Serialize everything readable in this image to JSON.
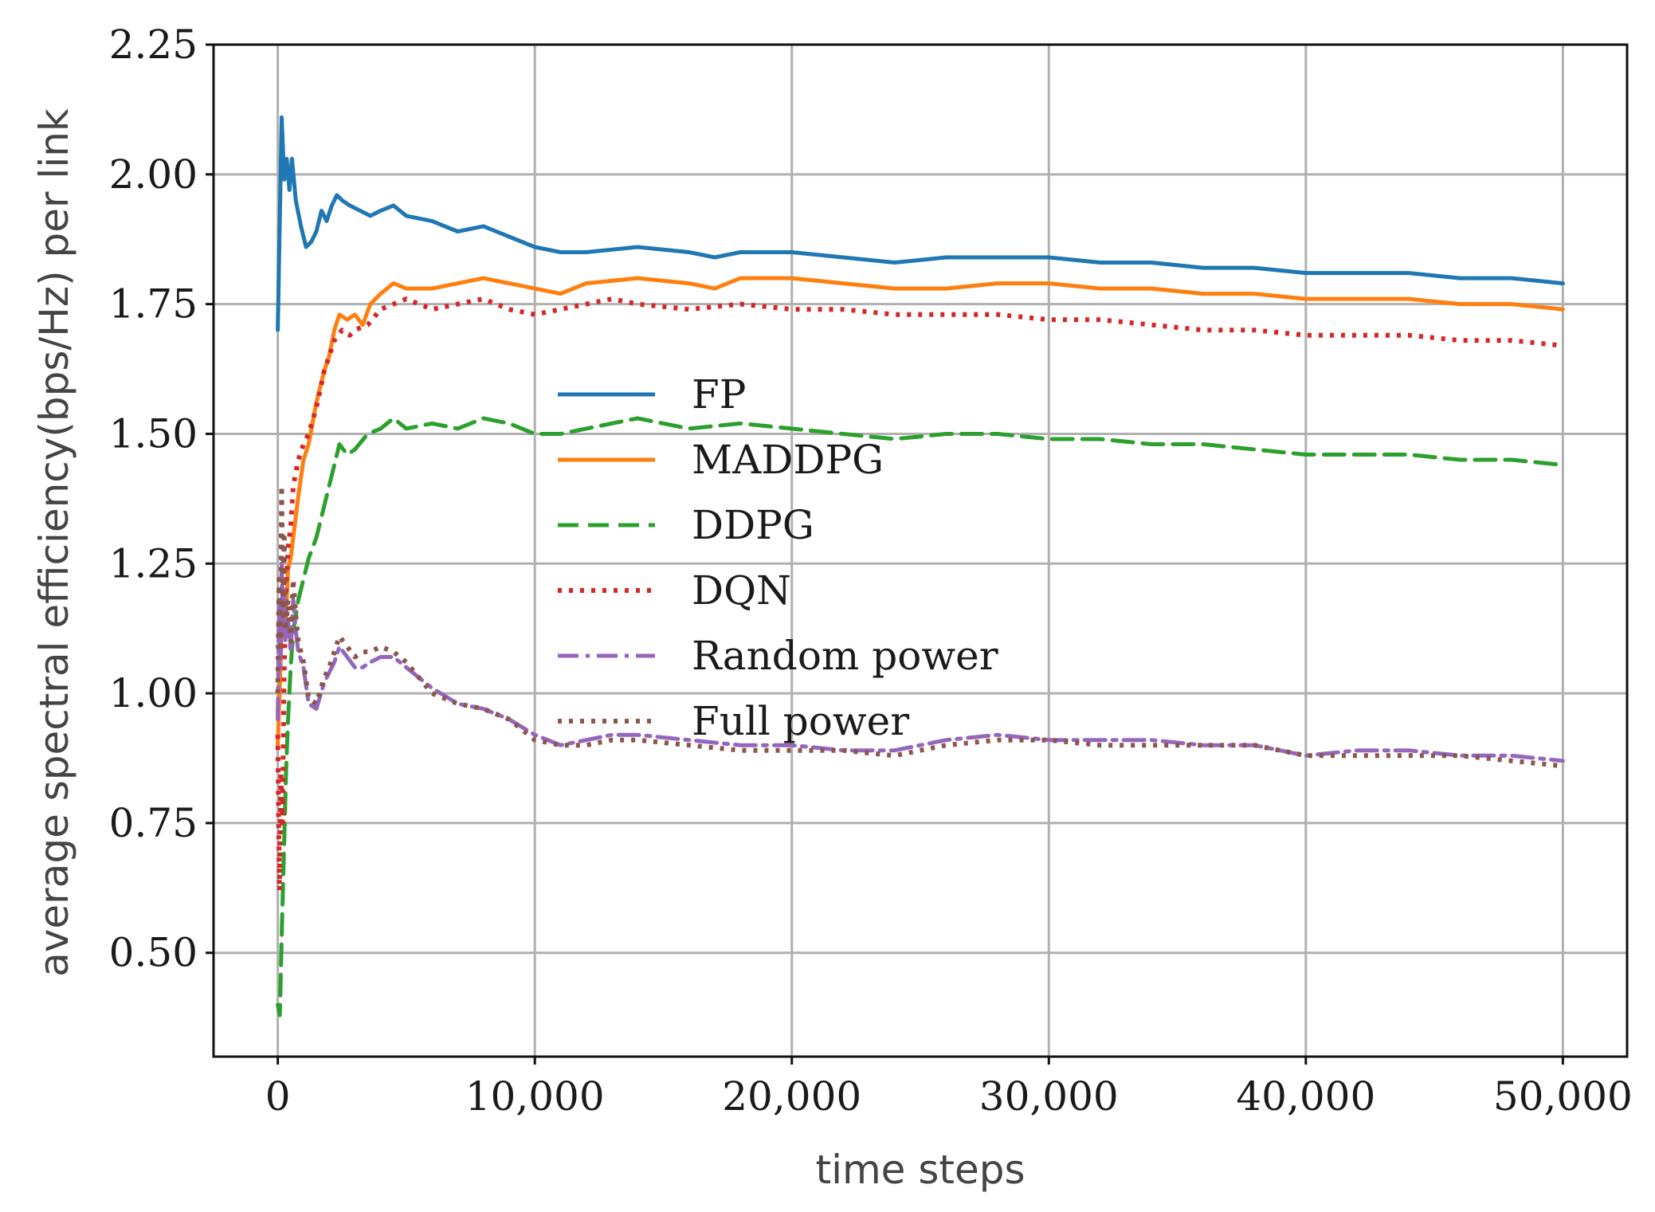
{
  "chart_data": {
    "type": "line",
    "title": "",
    "xlabel": "time steps",
    "ylabel": "average spectral efficiency(bps/Hz) per link",
    "xlim": [
      -2500,
      52500
    ],
    "ylim": [
      0.3,
      2.25
    ],
    "grid": true,
    "legend_position": "center",
    "x_ticks": [
      0,
      10000,
      20000,
      30000,
      40000,
      50000
    ],
    "x_tick_labels": [
      "0",
      "10,000",
      "20,000",
      "30,000",
      "40,000",
      "50,000"
    ],
    "y_ticks": [
      0.5,
      0.75,
      1.0,
      1.25,
      1.5,
      1.75,
      2.0,
      2.25
    ],
    "y_tick_labels": [
      "0.50",
      "0.75",
      "1.00",
      "1.25",
      "1.50",
      "1.75",
      "2.00",
      "2.25"
    ],
    "series": [
      {
        "name": "FP",
        "color": "#1f77b4",
        "style": "solid",
        "x": [
          0,
          150,
          250,
          350,
          450,
          550,
          700,
          900,
          1100,
          1300,
          1500,
          1700,
          1900,
          2100,
          2300,
          2500,
          2800,
          3200,
          3600,
          4000,
          4500,
          5000,
          6000,
          7000,
          8000,
          9000,
          10000,
          11000,
          12000,
          14000,
          16000,
          17000,
          18000,
          20000,
          22000,
          24000,
          26000,
          28000,
          30000,
          32000,
          34000,
          36000,
          38000,
          40000,
          42000,
          44000,
          46000,
          48000,
          50000
        ],
        "y": [
          1.7,
          2.11,
          1.99,
          2.03,
          1.97,
          2.03,
          1.95,
          1.9,
          1.86,
          1.87,
          1.89,
          1.93,
          1.91,
          1.94,
          1.96,
          1.95,
          1.94,
          1.93,
          1.92,
          1.93,
          1.94,
          1.92,
          1.91,
          1.89,
          1.9,
          1.88,
          1.86,
          1.85,
          1.85,
          1.86,
          1.85,
          1.84,
          1.85,
          1.85,
          1.84,
          1.83,
          1.84,
          1.84,
          1.84,
          1.83,
          1.83,
          1.82,
          1.82,
          1.81,
          1.81,
          1.81,
          1.8,
          1.8,
          1.79
        ]
      },
      {
        "name": "MADDPG",
        "color": "#ff7f0e",
        "style": "solid",
        "x": [
          0,
          100,
          200,
          300,
          400,
          500,
          600,
          800,
          1000,
          1200,
          1500,
          1800,
          2000,
          2200,
          2400,
          2700,
          3000,
          3300,
          3600,
          4000,
          4500,
          5000,
          6000,
          7000,
          8000,
          9000,
          10000,
          11000,
          12000,
          14000,
          16000,
          17000,
          18000,
          20000,
          22000,
          24000,
          26000,
          28000,
          30000,
          32000,
          34000,
          36000,
          38000,
          40000,
          42000,
          44000,
          46000,
          48000,
          50000
        ],
        "y": [
          0.9,
          1.05,
          1.18,
          1.12,
          1.24,
          1.26,
          1.3,
          1.38,
          1.45,
          1.48,
          1.56,
          1.62,
          1.65,
          1.7,
          1.73,
          1.72,
          1.73,
          1.71,
          1.75,
          1.77,
          1.79,
          1.78,
          1.78,
          1.79,
          1.8,
          1.79,
          1.78,
          1.77,
          1.79,
          1.8,
          1.79,
          1.78,
          1.8,
          1.8,
          1.79,
          1.78,
          1.78,
          1.79,
          1.79,
          1.78,
          1.78,
          1.77,
          1.77,
          1.76,
          1.76,
          1.76,
          1.75,
          1.75,
          1.74
        ]
      },
      {
        "name": "DDPG",
        "color": "#2ca02c",
        "style": "dashed",
        "x": [
          0,
          80,
          160,
          240,
          320,
          400,
          500,
          600,
          800,
          1000,
          1200,
          1500,
          1800,
          2000,
          2200,
          2400,
          2700,
          3000,
          3500,
          4000,
          4500,
          5000,
          6000,
          7000,
          8000,
          9000,
          10000,
          11000,
          12000,
          14000,
          16000,
          18000,
          20000,
          22000,
          24000,
          26000,
          28000,
          30000,
          32000,
          34000,
          36000,
          38000,
          40000,
          42000,
          44000,
          46000,
          48000,
          50000
        ],
        "y": [
          0.4,
          0.38,
          0.55,
          0.7,
          0.85,
          0.95,
          1.05,
          1.12,
          1.18,
          1.22,
          1.26,
          1.3,
          1.36,
          1.4,
          1.44,
          1.48,
          1.46,
          1.47,
          1.5,
          1.51,
          1.53,
          1.51,
          1.52,
          1.51,
          1.53,
          1.52,
          1.5,
          1.5,
          1.51,
          1.53,
          1.51,
          1.52,
          1.51,
          1.5,
          1.49,
          1.5,
          1.5,
          1.49,
          1.49,
          1.48,
          1.48,
          1.47,
          1.46,
          1.46,
          1.46,
          1.45,
          1.45,
          1.44
        ]
      },
      {
        "name": "DQN",
        "color": "#d62728",
        "style": "dotted",
        "x": [
          0,
          60,
          120,
          180,
          240,
          300,
          400,
          500,
          600,
          800,
          1000,
          1200,
          1500,
          1800,
          2000,
          2200,
          2500,
          2800,
          3000,
          3500,
          4000,
          4500,
          5000,
          6000,
          7000,
          8000,
          9000,
          10000,
          11000,
          12000,
          13000,
          14000,
          16000,
          18000,
          20000,
          22000,
          24000,
          26000,
          28000,
          30000,
          32000,
          34000,
          36000,
          38000,
          40000,
          42000,
          44000,
          46000,
          48000,
          50000
        ],
        "y": [
          0.92,
          0.62,
          0.85,
          0.75,
          1.02,
          1.18,
          1.28,
          1.32,
          1.4,
          1.45,
          1.48,
          1.5,
          1.55,
          1.62,
          1.65,
          1.68,
          1.7,
          1.69,
          1.7,
          1.71,
          1.74,
          1.75,
          1.76,
          1.74,
          1.75,
          1.76,
          1.74,
          1.73,
          1.74,
          1.75,
          1.76,
          1.75,
          1.74,
          1.75,
          1.74,
          1.74,
          1.73,
          1.73,
          1.73,
          1.72,
          1.72,
          1.71,
          1.7,
          1.7,
          1.69,
          1.69,
          1.69,
          1.68,
          1.68,
          1.67
        ]
      },
      {
        "name": "Random power",
        "color": "#9467bd",
        "style": "dashdot",
        "x": [
          0,
          50,
          100,
          150,
          200,
          250,
          300,
          400,
          500,
          600,
          700,
          800,
          1000,
          1200,
          1500,
          1800,
          2000,
          2200,
          2400,
          2700,
          3000,
          3300,
          3600,
          4000,
          4500,
          5000,
          5500,
          6000,
          7000,
          8000,
          9000,
          10000,
          11000,
          12000,
          13000,
          14000,
          16000,
          18000,
          20000,
          22000,
          24000,
          26000,
          28000,
          30000,
          32000,
          34000,
          36000,
          38000,
          40000,
          42000,
          44000,
          46000,
          48000,
          50000
        ],
        "y": [
          0.95,
          1.18,
          1.05,
          1.25,
          1.12,
          1.2,
          1.1,
          1.14,
          1.08,
          1.18,
          1.12,
          1.08,
          1.05,
          0.98,
          0.97,
          1.02,
          1.04,
          1.06,
          1.09,
          1.07,
          1.05,
          1.05,
          1.06,
          1.07,
          1.07,
          1.05,
          1.03,
          1.01,
          0.98,
          0.97,
          0.95,
          0.92,
          0.9,
          0.91,
          0.92,
          0.92,
          0.91,
          0.9,
          0.9,
          0.89,
          0.89,
          0.91,
          0.92,
          0.91,
          0.91,
          0.91,
          0.9,
          0.9,
          0.88,
          0.89,
          0.89,
          0.88,
          0.88,
          0.87
        ]
      },
      {
        "name": "Full power",
        "color": "#8c564b",
        "style": "dotted",
        "x": [
          0,
          50,
          100,
          150,
          200,
          250,
          300,
          400,
          500,
          600,
          700,
          800,
          1000,
          1200,
          1500,
          1800,
          2000,
          2200,
          2400,
          2700,
          3000,
          3300,
          3600,
          4000,
          4500,
          5000,
          5500,
          6000,
          7000,
          8000,
          9000,
          10000,
          11000,
          12000,
          13000,
          14000,
          16000,
          18000,
          20000,
          22000,
          24000,
          26000,
          28000,
          30000,
          32000,
          34000,
          36000,
          38000,
          40000,
          42000,
          44000,
          46000,
          48000,
          50000
        ],
        "y": [
          1.0,
          1.22,
          1.08,
          1.4,
          1.15,
          1.3,
          1.12,
          1.18,
          1.1,
          1.22,
          1.15,
          1.1,
          1.06,
          0.99,
          0.98,
          1.03,
          1.05,
          1.08,
          1.11,
          1.09,
          1.07,
          1.08,
          1.08,
          1.09,
          1.08,
          1.06,
          1.03,
          1.0,
          0.98,
          0.97,
          0.95,
          0.91,
          0.9,
          0.9,
          0.91,
          0.91,
          0.9,
          0.89,
          0.89,
          0.89,
          0.88,
          0.9,
          0.91,
          0.91,
          0.9,
          0.9,
          0.9,
          0.9,
          0.88,
          0.88,
          0.88,
          0.88,
          0.87,
          0.86
        ]
      }
    ]
  }
}
